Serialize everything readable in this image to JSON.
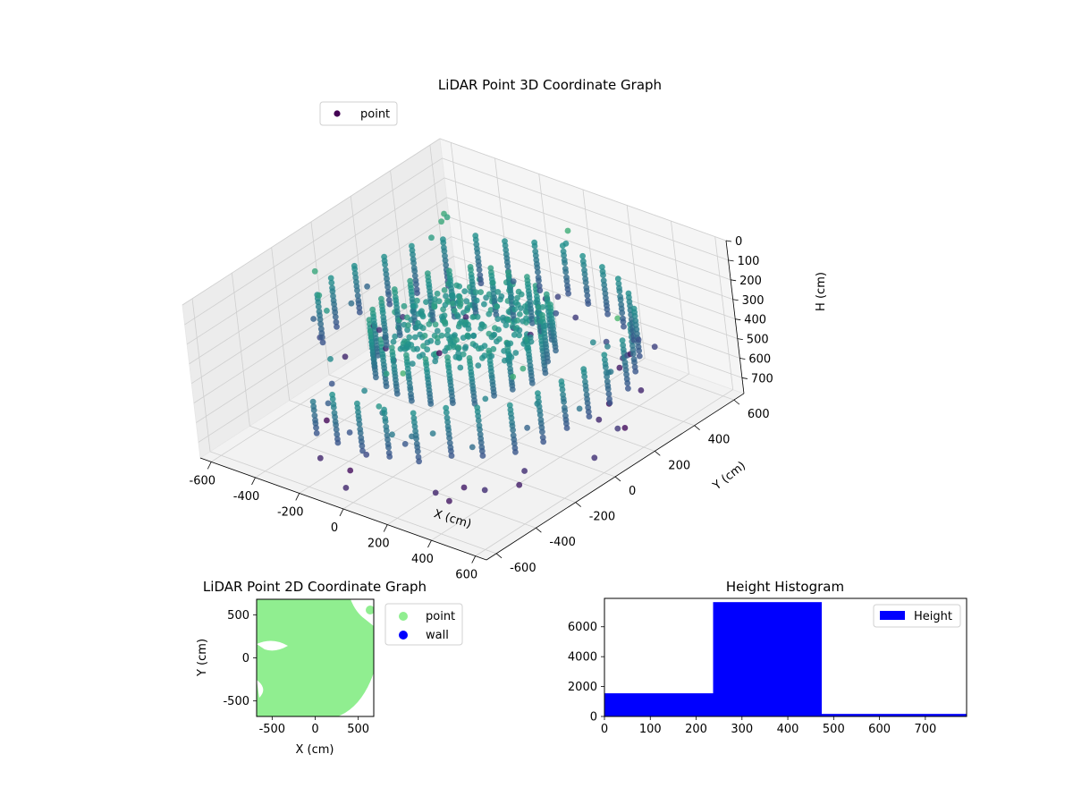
{
  "chart_data": [
    {
      "type": "scatter",
      "projection": "3d",
      "title": "LiDAR Point 3D Coordinate Graph",
      "xlabel": "X (cm)",
      "ylabel": "Y (cm)",
      "zlabel": "H (cm)",
      "xlim": [
        -650,
        650
      ],
      "ylim": [
        -650,
        650
      ],
      "zlim": [
        0,
        780
      ],
      "zaxis_inverted": true,
      "x_ticks": [
        -600,
        -400,
        -200,
        0,
        200,
        400,
        600
      ],
      "y_ticks": [
        -600,
        -400,
        -200,
        0,
        200,
        400,
        600
      ],
      "z_ticks": [
        0,
        100,
        200,
        300,
        400,
        500,
        600,
        700
      ],
      "colormap": "viridis",
      "grid": true,
      "legend": {
        "placement": "upper-left",
        "entries": [
          {
            "label": "point",
            "color": "#440154"
          }
        ]
      },
      "series": [
        {
          "name": "point",
          "description_shape": "two concentric elliptical rings of points (radii ~580 cm and ~300 cm) plus a filled disk, mostly near H 200-500 cm, with sparse outliers up to ~780 cm",
          "sample_points": [
            {
              "x": -580,
              "y": 0,
              "h": 380
            },
            {
              "x": 0,
              "y": 580,
              "h": 380
            },
            {
              "x": 580,
              "y": 0,
              "h": 380
            },
            {
              "x": 0,
              "y": -580,
              "h": 380
            },
            {
              "x": -300,
              "y": 0,
              "h": 300
            },
            {
              "x": 0,
              "y": 300,
              "h": 300
            },
            {
              "x": 300,
              "y": 0,
              "h": 300
            },
            {
              "x": 0,
              "y": -300,
              "h": 300
            },
            {
              "x": 0,
              "y": 0,
              "h": 250
            },
            {
              "x": 500,
              "y": 550,
              "h": 700
            },
            {
              "x": -600,
              "y": -500,
              "h": 600
            }
          ]
        }
      ]
    },
    {
      "type": "scatter",
      "title": "LiDAR Point 2D Coordinate Graph",
      "xlabel": "X (cm)",
      "ylabel": "Y (cm)",
      "xlim": [
        -680,
        680
      ],
      "ylim": [
        -680,
        680
      ],
      "x_ticks": [
        -500,
        0,
        500
      ],
      "y_ticks": [
        -500,
        0,
        500
      ],
      "legend": {
        "placement": "outside-right",
        "entries": [
          {
            "label": "point",
            "color": "#90ee90"
          },
          {
            "label": "wall",
            "color": "#0000ff"
          }
        ]
      },
      "series": [
        {
          "name": "point",
          "color": "#90ee90",
          "description_shape": "dense filled region covering most of the plot, rounded toward bottom-right"
        },
        {
          "name": "wall",
          "color": "#0000ff",
          "values": []
        }
      ]
    },
    {
      "type": "bar",
      "title": "Height Histogram",
      "xlabel": "",
      "ylabel": "",
      "xlim": [
        0,
        790
      ],
      "ylim": [
        0,
        7900
      ],
      "x_ticks": [
        0,
        100,
        200,
        300,
        400,
        500,
        600,
        700
      ],
      "y_ticks": [
        0,
        2000,
        4000,
        6000
      ],
      "bin_edges": [
        0,
        237,
        474,
        790
      ],
      "counts": [
        1550,
        7650,
        170
      ],
      "color": "#0000ff",
      "legend": {
        "placement": "upper-right",
        "entries": [
          {
            "label": "Height",
            "color": "#0000ff"
          }
        ]
      }
    }
  ]
}
